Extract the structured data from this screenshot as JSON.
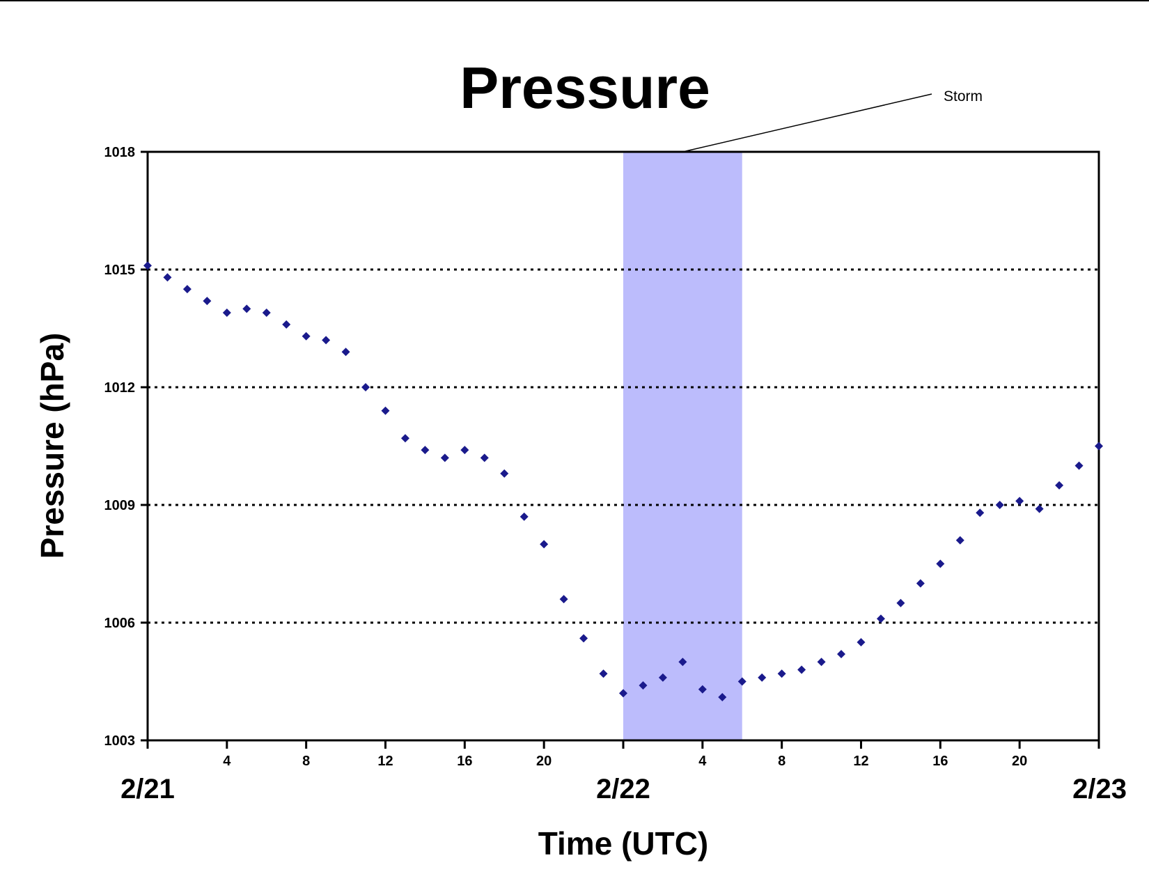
{
  "chart_data": {
    "type": "scatter",
    "title": "Pressure",
    "xlabel": "Time (UTC)",
    "ylabel": "Pressure (hPa)",
    "ylim": [
      1003,
      1018
    ],
    "yticks": [
      "1003",
      "1006",
      "1009",
      "1012",
      "1015",
      "1018"
    ],
    "xlim_hours": [
      0,
      48
    ],
    "xticks": [
      {
        "hour": 4,
        "label": "4"
      },
      {
        "hour": 8,
        "label": "8"
      },
      {
        "hour": 12,
        "label": "12"
      },
      {
        "hour": 16,
        "label": "16"
      },
      {
        "hour": 20,
        "label": "20"
      },
      {
        "hour": 28,
        "label": "4"
      },
      {
        "hour": 32,
        "label": "8"
      },
      {
        "hour": 36,
        "label": "12"
      },
      {
        "hour": 40,
        "label": "16"
      },
      {
        "hour": 44,
        "label": "20"
      }
    ],
    "date_labels": [
      {
        "hour": 0,
        "label": "2/21"
      },
      {
        "hour": 24,
        "label": "2/22"
      },
      {
        "hour": 48,
        "label": "2/23"
      }
    ],
    "grid": "horizontal dotted",
    "marker_color": "#1a1a8c",
    "shade_color": "#bcbcfc",
    "annotation": {
      "label": "Storm",
      "start_hour": 24,
      "end_hour": 30
    },
    "series": [
      {
        "points": [
          [
            0,
            1015.1
          ],
          [
            1,
            1014.8
          ],
          [
            2,
            1014.5
          ],
          [
            3,
            1014.2
          ],
          [
            4,
            1013.9
          ],
          [
            5,
            1014.0
          ],
          [
            6,
            1013.9
          ],
          [
            7,
            1013.6
          ],
          [
            8,
            1013.3
          ],
          [
            9,
            1013.2
          ],
          [
            10,
            1012.9
          ],
          [
            11,
            1012.0
          ],
          [
            12,
            1011.4
          ],
          [
            13,
            1010.7
          ],
          [
            14,
            1010.4
          ],
          [
            15,
            1010.2
          ],
          [
            16,
            1010.4
          ],
          [
            17,
            1010.2
          ],
          [
            18,
            1009.8
          ],
          [
            19,
            1008.7
          ],
          [
            20,
            1008.0
          ],
          [
            21,
            1006.6
          ],
          [
            22,
            1005.6
          ],
          [
            23,
            1004.7
          ],
          [
            24,
            1004.2
          ],
          [
            25,
            1004.4
          ],
          [
            26,
            1004.6
          ],
          [
            27,
            1005.0
          ],
          [
            28,
            1004.3
          ],
          [
            29,
            1004.1
          ],
          [
            30,
            1004.5
          ],
          [
            31,
            1004.6
          ],
          [
            32,
            1004.7
          ],
          [
            33,
            1004.8
          ],
          [
            34,
            1005.0
          ],
          [
            35,
            1005.2
          ],
          [
            36,
            1005.5
          ],
          [
            37,
            1006.1
          ],
          [
            38,
            1006.5
          ],
          [
            39,
            1007.0
          ],
          [
            40,
            1007.5
          ],
          [
            41,
            1008.1
          ],
          [
            42,
            1008.8
          ],
          [
            43,
            1009.0
          ],
          [
            44,
            1009.1
          ],
          [
            45,
            1008.9
          ],
          [
            46,
            1009.5
          ],
          [
            47,
            1010.0
          ],
          [
            48,
            1010.5
          ]
        ]
      }
    ]
  }
}
